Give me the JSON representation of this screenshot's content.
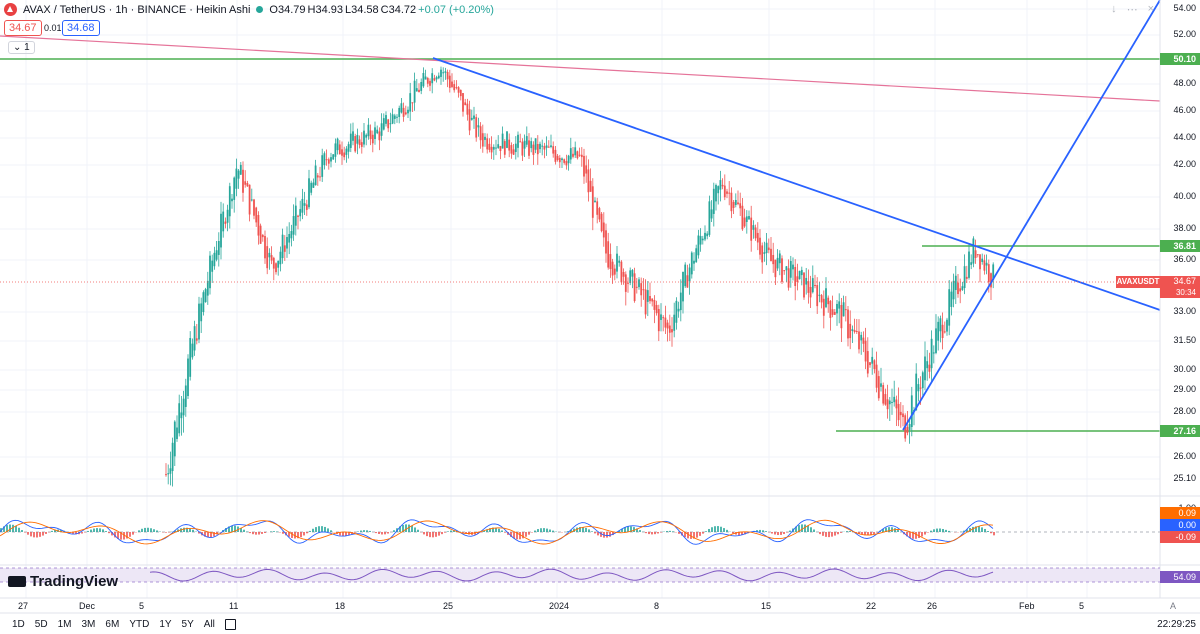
{
  "header": {
    "symbol": "AVAX / TetherUS · 1h · BINANCE · Heikin Ashi",
    "ohlc": {
      "o": "O34.79",
      "h": "H34.93",
      "l": "L34.58",
      "c": "C34.72",
      "chg": "+0.07 (+0.20%)"
    },
    "bid": "34.67",
    "spread": "0.01",
    "ask": "34.68",
    "indicator_toggle": "1"
  },
  "colors": {
    "up": "#26a69a",
    "down": "#ef5350",
    "trend": "#2962ff",
    "hline": "#4caf50",
    "longline": "#e57399",
    "macd_line": "#2962ff",
    "signal_line": "#ff6d00",
    "rsi": "#7e57c2"
  },
  "price_axis": {
    "ticks": [
      "54.00",
      "52.00",
      "48.00",
      "46.00",
      "44.00",
      "42.00",
      "40.00",
      "38.00",
      "36.00",
      "33.00",
      "31.50",
      "30.00",
      "29.00",
      "28.00",
      "26.00",
      "25.10"
    ]
  },
  "hlines": [
    {
      "label": "50.10",
      "value": 50.1
    },
    {
      "label": "36.81",
      "value": 36.81
    },
    {
      "label": "27.16",
      "value": 27.16
    }
  ],
  "last_price": {
    "symbol": "AVAXUSDT",
    "price": "34.67",
    "countdown": "30:34"
  },
  "macd": {
    "labels": [
      "1.00",
      "0.09",
      "0.00",
      "-0.09"
    ]
  },
  "rsi": {
    "value": "54.09"
  },
  "time_axis": [
    "27",
    "Dec",
    "5",
    "11",
    "18",
    "25",
    "2024",
    "8",
    "15",
    "22",
    "26",
    "Feb",
    "5"
  ],
  "timeframes": [
    "1D",
    "5D",
    "1M",
    "3M",
    "6M",
    "YTD",
    "1Y",
    "5Y",
    "All"
  ],
  "clock": "22:29:25",
  "brand": "TradingView",
  "chart_data": {
    "type": "candlestick",
    "title": "AVAX / TetherUS · 1h · BINANCE · Heikin Ashi",
    "x_range": [
      "Nov 25, 2023",
      "Feb 9, 2024"
    ],
    "ylim": [
      24.5,
      55
    ],
    "key_closes": [
      {
        "date": "Dec 6",
        "value": 25.3
      },
      {
        "date": "Dec 8",
        "value": 33
      },
      {
        "date": "Dec 11",
        "value": 42
      },
      {
        "date": "Dec 13",
        "value": 35.5
      },
      {
        "date": "Dec 18",
        "value": 43
      },
      {
        "date": "Dec 21",
        "value": 44.5
      },
      {
        "date": "Dec 24",
        "value": 49.5
      },
      {
        "date": "Dec 27",
        "value": 44
      },
      {
        "date": "Jan 1",
        "value": 42.5
      },
      {
        "date": "Jan 3",
        "value": 36.5
      },
      {
        "date": "Jan 8",
        "value": 32
      },
      {
        "date": "Jan 11",
        "value": 41
      },
      {
        "date": "Jan 15",
        "value": 36
      },
      {
        "date": "Jan 19",
        "value": 33
      },
      {
        "date": "Jan 23",
        "value": 27.3
      },
      {
        "date": "Jan 28",
        "value": 36.8
      },
      {
        "date": "Jan 29",
        "value": 34.7
      }
    ],
    "annotations": [
      "Descending trendline from 50.10 high",
      "Ascending trendline from 27.16 low",
      "Horizontal levels 50.10, 36.81, 27.16"
    ]
  }
}
